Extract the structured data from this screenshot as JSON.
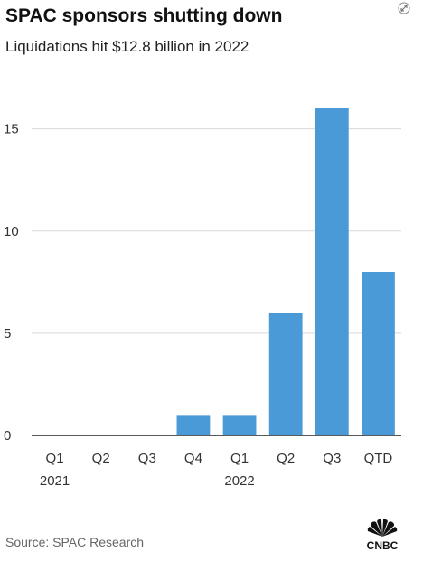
{
  "header": {
    "title": "SPAC sponsors shutting down",
    "subtitle": "Liquidations hit $12.8 billion in 2022"
  },
  "footer": {
    "source": "Source: SPAC Research",
    "logo_text": "CNBC"
  },
  "colors": {
    "bar": "#4a9ad8",
    "grid": "#d9d9d9",
    "axis": "#222222"
  },
  "chart_data": {
    "type": "bar",
    "categories": [
      "Q1",
      "Q2",
      "Q3",
      "Q4",
      "Q1",
      "Q2",
      "Q3",
      "QTD"
    ],
    "year_labels": [
      {
        "text": "2021",
        "category_index": 0
      },
      {
        "text": "2022",
        "category_index": 4
      }
    ],
    "values": [
      0,
      0,
      0,
      1,
      1,
      6,
      16,
      8
    ],
    "ylim": [
      0,
      16
    ],
    "yticks": [
      0,
      5,
      10,
      15
    ],
    "grid": true,
    "xlabel": "",
    "ylabel": ""
  }
}
